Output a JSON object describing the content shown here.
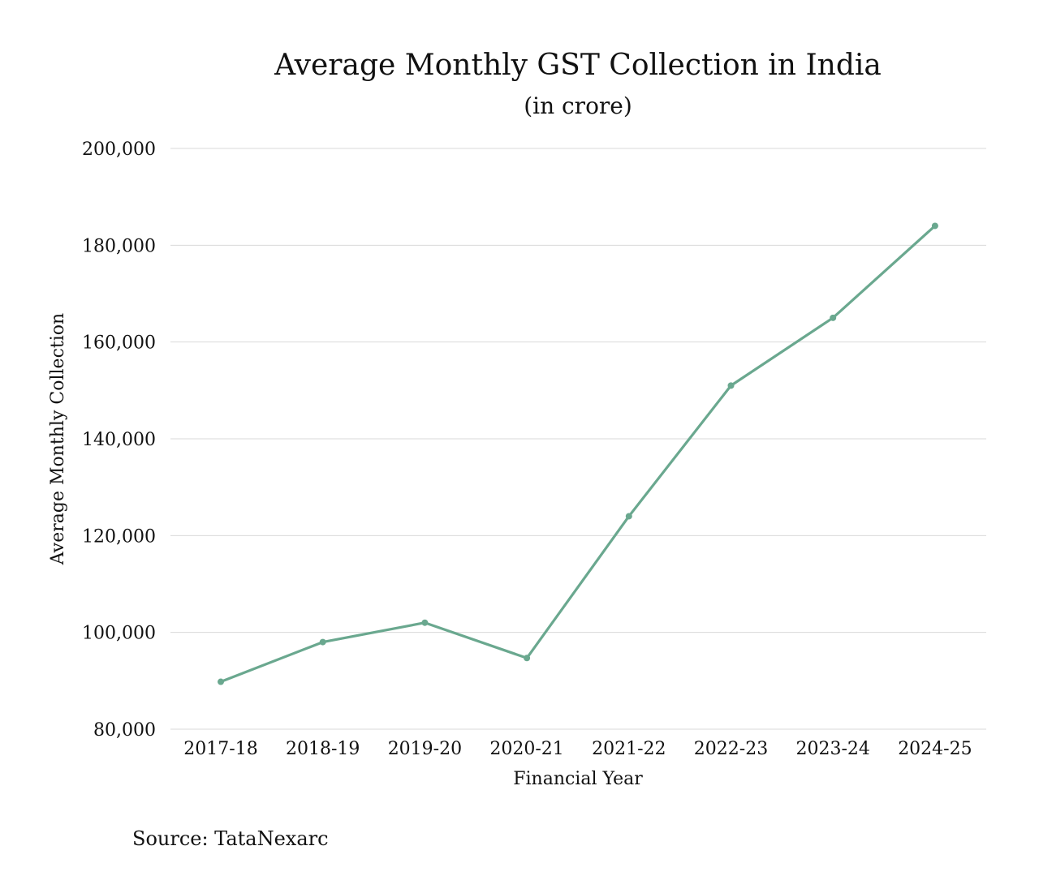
{
  "chart_data": {
    "type": "line",
    "title": "Average Monthly GST Collection in India",
    "subtitle": "(in crore)",
    "xlabel": "Financial Year",
    "ylabel": "Average Monthly Collection",
    "categories": [
      "2017-18",
      "2018-19",
      "2019-20",
      "2020-21",
      "2021-22",
      "2022-23",
      "2023-24",
      "2024-25"
    ],
    "series": [
      {
        "name": "Average Monthly Collection",
        "values": [
          89800,
          98000,
          102000,
          94700,
          124000,
          151000,
          165000,
          184000
        ],
        "color": "#6aa88f"
      }
    ],
    "ylim": [
      80000,
      200000
    ],
    "yticks": [
      80000,
      100000,
      120000,
      140000,
      160000,
      180000,
      200000
    ],
    "ytick_labels": [
      "80,000",
      "100,000",
      "120,000",
      "140,000",
      "160,000",
      "180,000",
      "200,000"
    ],
    "grid": true,
    "source": "Source: TataNexarc"
  },
  "colors": {
    "line": "#6aa88f",
    "grid": "#d9d9d9",
    "text": "#111111"
  }
}
